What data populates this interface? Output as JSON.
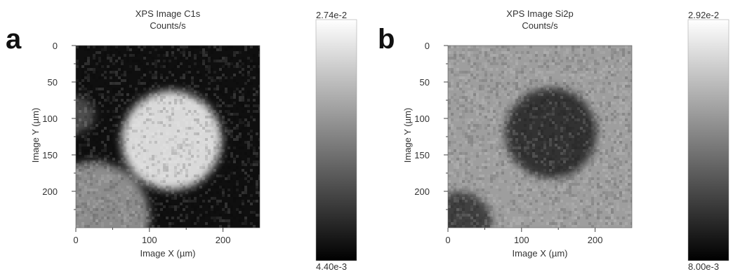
{
  "panels": [
    {
      "letter": "a",
      "title_line1": "XPS Image C1s",
      "title_line2": "Counts/s",
      "colorbar_max": "2.74e-2",
      "colorbar_min": "4.40e-3"
    },
    {
      "letter": "b",
      "title_line1": "XPS Image Si2p",
      "title_line2": "Counts/s",
      "colorbar_max": "2.92e-2",
      "colorbar_min": "8.00e-3"
    }
  ],
  "chart_data": [
    {
      "type": "heatmap",
      "title": "XPS Image C1s",
      "subtitle": "Counts/s",
      "xlabel": "Image X (µm)",
      "ylabel": "Image Y (µm)",
      "xlim": [
        0,
        250
      ],
      "ylim": [
        0,
        250
      ],
      "y_inverted": true,
      "xticks": [
        0,
        100,
        200
      ],
      "yticks": [
        0,
        50,
        100,
        150,
        200
      ],
      "colormap": "grayscale",
      "colorbar": {
        "min": 0.0044,
        "max": 0.0274,
        "min_label": "4.40e-3",
        "max_label": "2.74e-2"
      },
      "features": [
        {
          "shape": "bright blob",
          "center_um": [
            130,
            130
          ],
          "radius_um": 68,
          "relative_intensity": 0.85
        },
        {
          "shape": "bright region",
          "center_um": [
            25,
            235
          ],
          "radius_um": 75,
          "relative_intensity": 0.55
        },
        {
          "shape": "faint patch",
          "center_um": [
            0,
            95
          ],
          "radius_um": 25,
          "relative_intensity": 0.3
        }
      ]
    },
    {
      "type": "heatmap",
      "title": "XPS Image Si2p",
      "subtitle": "Counts/s",
      "xlabel": "Image X (µm)",
      "ylabel": "Image Y (µm)",
      "xlim": [
        0,
        250
      ],
      "ylim": [
        0,
        250
      ],
      "y_inverted": true,
      "xticks": [
        0,
        100,
        200
      ],
      "yticks": [
        0,
        50,
        100,
        150,
        200
      ],
      "colormap": "grayscale",
      "colorbar": {
        "min": 0.008,
        "max": 0.0292,
        "min_label": "8.00e-3",
        "max_label": "2.92e-2"
      },
      "background_relative_intensity": 0.62,
      "features": [
        {
          "shape": "dark blob",
          "center_um": [
            140,
            120
          ],
          "radius_um": 62,
          "relative_intensity": 0.2
        },
        {
          "shape": "dark region",
          "center_um": [
            15,
            245
          ],
          "radius_um": 45,
          "relative_intensity": 0.25
        }
      ]
    }
  ]
}
